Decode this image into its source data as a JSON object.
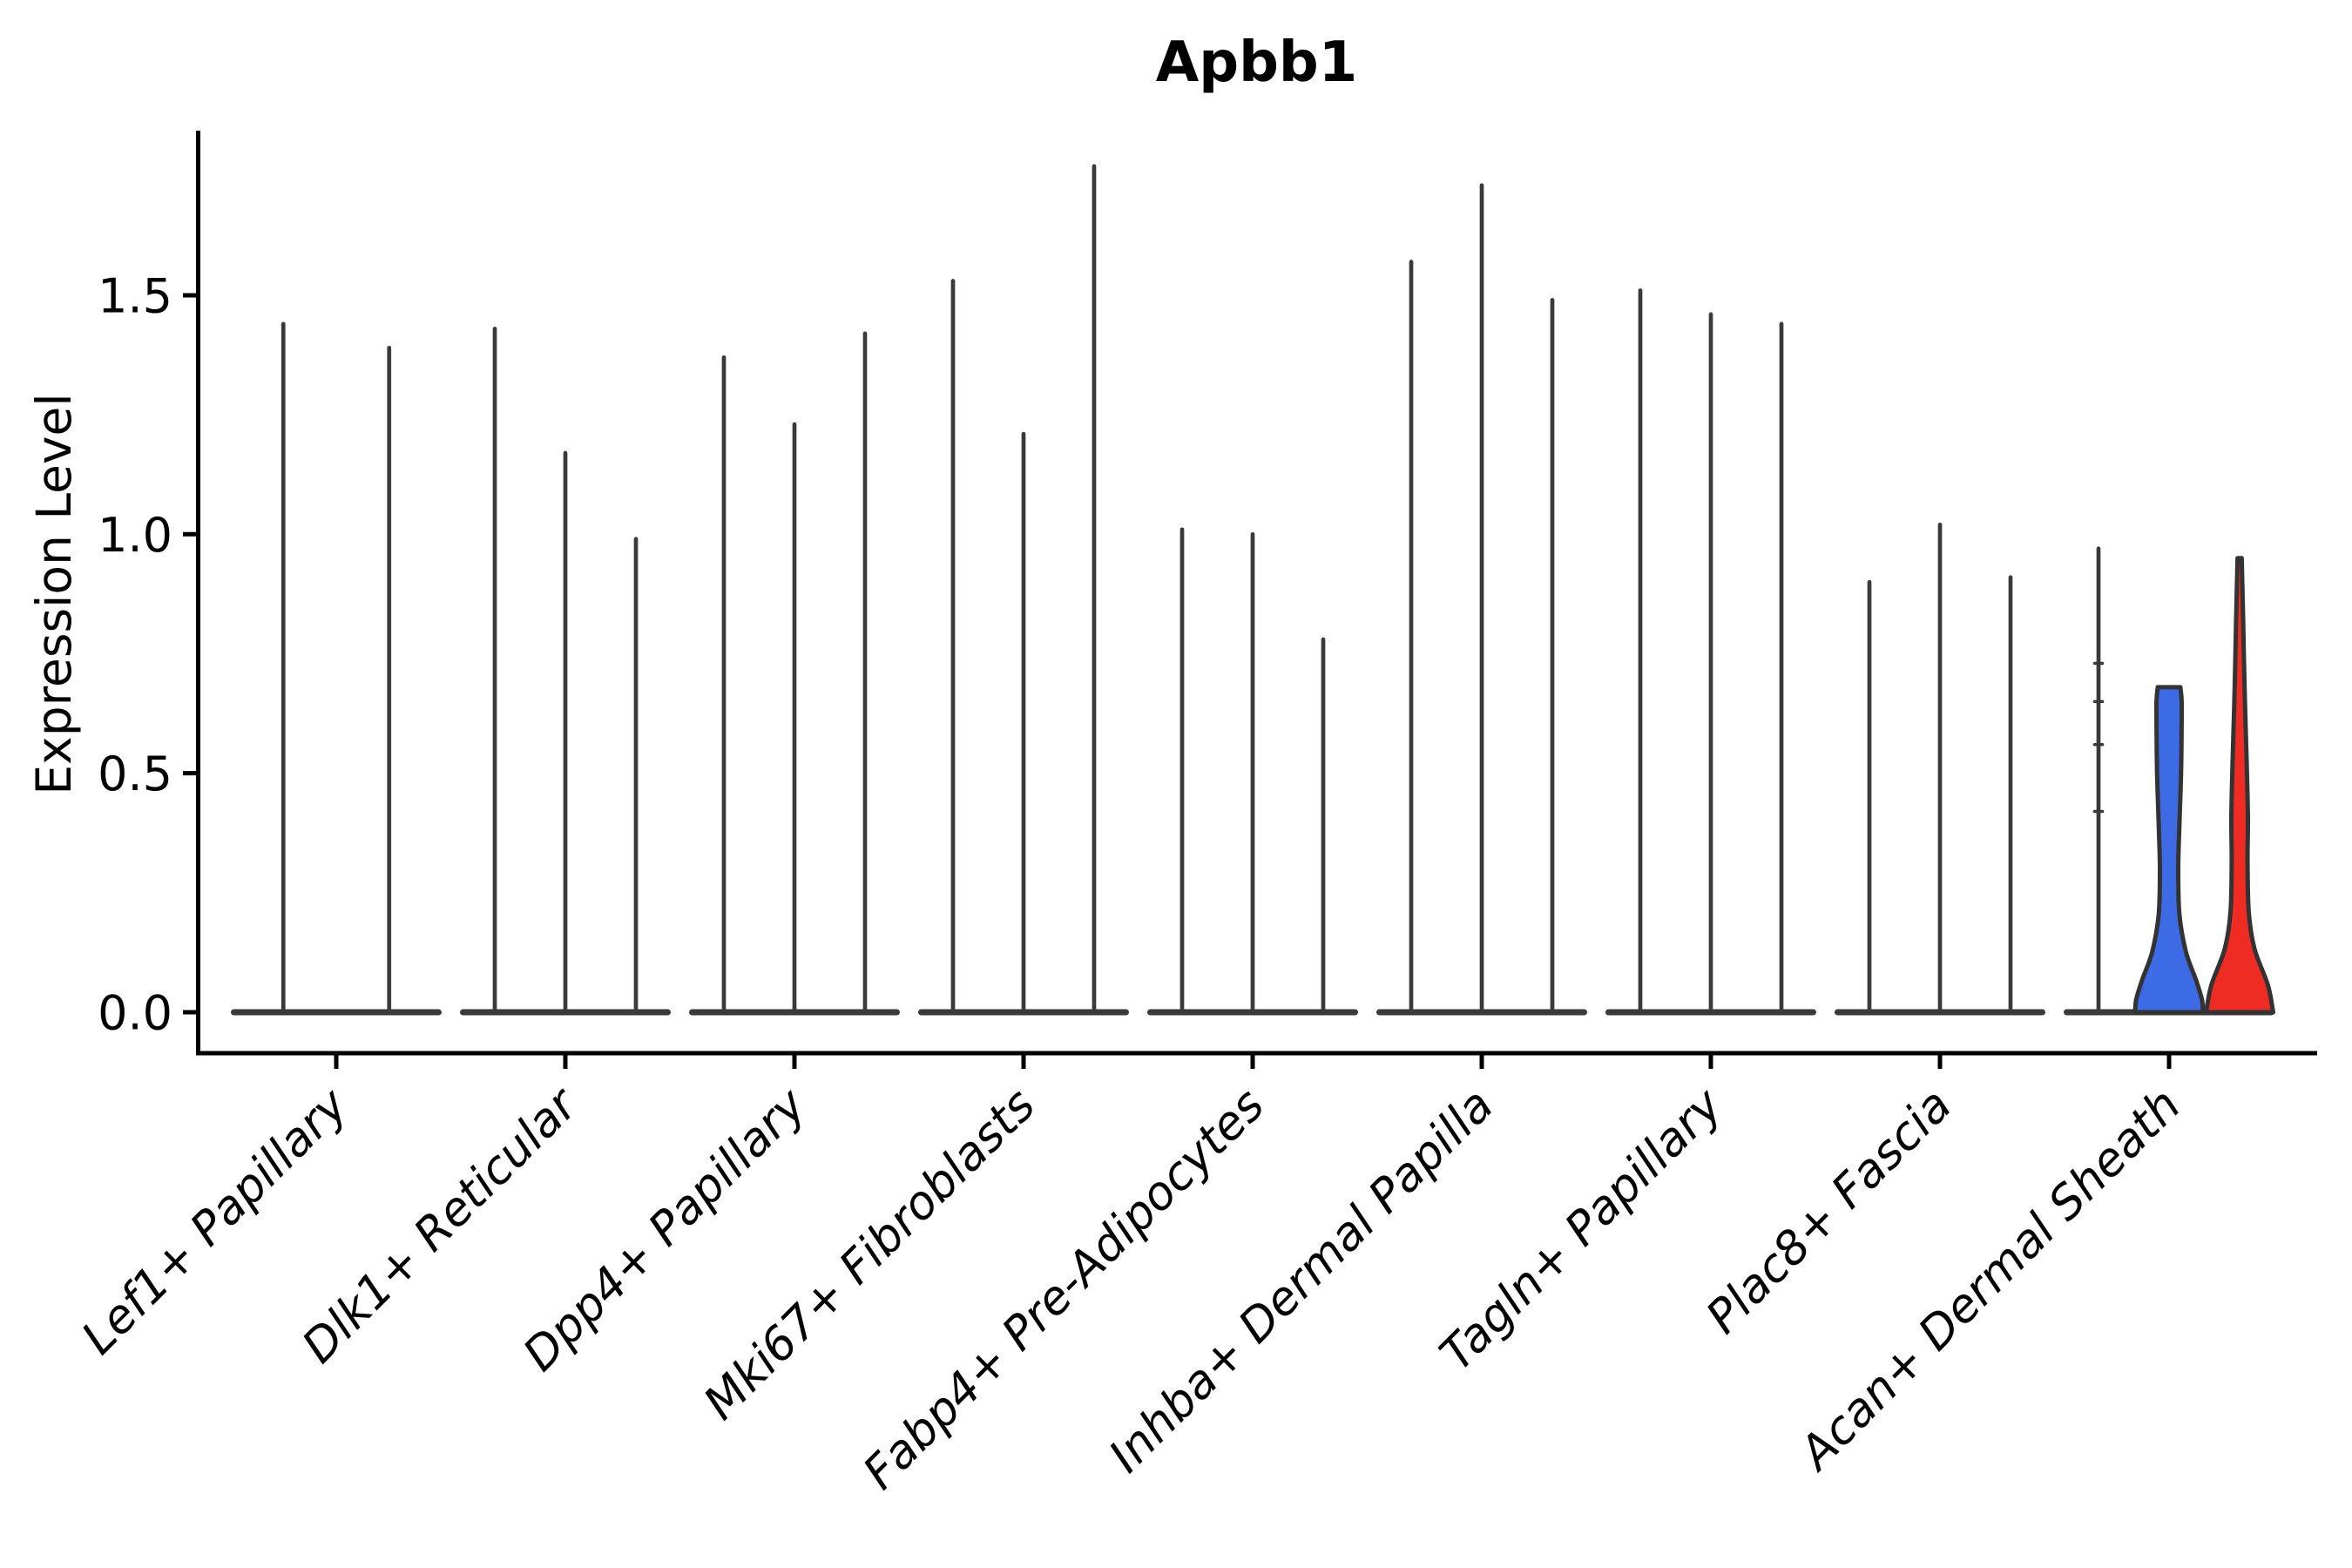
{
  "chart_data": {
    "type": "violin",
    "title": "Apbb1",
    "ylabel": "Expression Level",
    "yticks": [
      {
        "label": "0.0",
        "value": 0.0
      },
      {
        "label": "0.5",
        "value": 0.5
      },
      {
        "label": "1.0",
        "value": 1.0
      },
      {
        "label": "1.5",
        "value": 1.5
      }
    ],
    "ylim": [
      -0.086,
      1.835
    ],
    "grid": false,
    "legend": "none",
    "stroke_color": "#3A3A3A",
    "axis_color": "#000000",
    "blue_fill": "#3D6BE5",
    "red_fill": "#EE2C24",
    "groups": [
      {
        "category": "Lef1+ Papillary",
        "violins": [
          {
            "type": "spike",
            "max": 1.44
          },
          {
            "type": "spike",
            "max": 1.39
          }
        ]
      },
      {
        "category": "Dlk1+ Reticular",
        "violins": [
          {
            "type": "spike",
            "max": 1.43
          },
          {
            "type": "spike",
            "max": 1.17
          },
          {
            "type": "spike",
            "max": 0.99
          }
        ]
      },
      {
        "category": "Dpp4+ Papillary",
        "violins": [
          {
            "type": "spike",
            "max": 1.37
          },
          {
            "type": "spike",
            "max": 1.23
          },
          {
            "type": "spike",
            "max": 1.42
          }
        ]
      },
      {
        "category": "Mki67+ Fibroblasts",
        "violins": [
          {
            "type": "spike",
            "max": 1.53
          },
          {
            "type": "spike",
            "max": 1.21
          },
          {
            "type": "spike",
            "max": 1.77
          }
        ]
      },
      {
        "category": "Fabp4+ Pre-Adipocytes",
        "violins": [
          {
            "type": "spike",
            "max": 1.01
          },
          {
            "type": "spike",
            "max": 1.0
          },
          {
            "type": "spike",
            "max": 0.78
          }
        ]
      },
      {
        "category": "Inhba+ Dermal Papilla",
        "violins": [
          {
            "type": "spike",
            "max": 1.57
          },
          {
            "type": "spike",
            "max": 1.73
          },
          {
            "type": "spike",
            "max": 1.49
          }
        ]
      },
      {
        "category": "Tagln+ Papillary",
        "violins": [
          {
            "type": "spike",
            "max": 1.51
          },
          {
            "type": "spike",
            "max": 1.46
          },
          {
            "type": "spike",
            "max": 1.44
          }
        ]
      },
      {
        "category": "Plac8+ Fascia",
        "violins": [
          {
            "type": "spike",
            "max": 0.9
          },
          {
            "type": "spike",
            "max": 1.02
          },
          {
            "type": "spike",
            "max": 0.91
          }
        ]
      },
      {
        "category": "Acan+ Dermal Sheath",
        "violins": [
          {
            "type": "spike",
            "max": 0.97,
            "marks": [
              0.42,
              0.56,
              0.65,
              0.73
            ]
          },
          {
            "type": "filled",
            "max": 0.68,
            "color": "#3D6BE5",
            "profile": [
              [
                1,
                0.32
              ],
              [
                0.96,
                0.355
              ],
              [
                0.88,
                0.355
              ],
              [
                0.74,
                0.34
              ],
              [
                0.58,
                0.295
              ],
              [
                0.44,
                0.26
              ],
              [
                0.3,
                0.295
              ],
              [
                0.185,
                0.48
              ],
              [
                0.1,
                0.76
              ],
              [
                0.04,
                0.93
              ],
              [
                0,
                0.96
              ]
            ]
          },
          {
            "type": "filled",
            "max": 0.95,
            "color": "#EE2C24",
            "profile": [
              [
                1,
                0.06
              ],
              [
                0.86,
                0.1
              ],
              [
                0.7,
                0.145
              ],
              [
                0.55,
                0.2
              ],
              [
                0.43,
                0.235
              ],
              [
                0.33,
                0.225
              ],
              [
                0.22,
                0.26
              ],
              [
                0.14,
                0.42
              ],
              [
                0.06,
                0.8
              ],
              [
                0,
                0.95
              ]
            ]
          }
        ]
      }
    ]
  }
}
